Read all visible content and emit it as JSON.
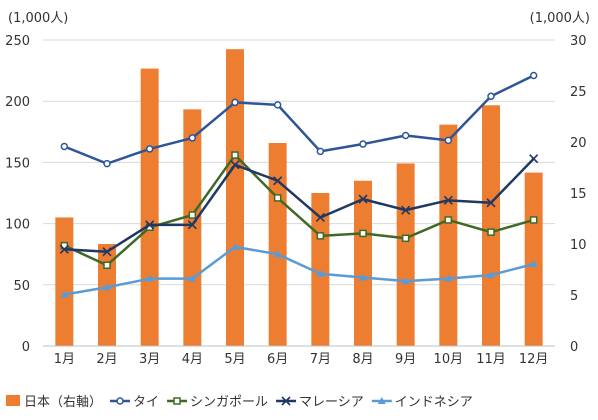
{
  "chart_data": {
    "type": "bar+line",
    "left_unit": "(1,000人)",
    "right_unit": "(1,000人)",
    "categories": [
      "1月",
      "2月",
      "3月",
      "4月",
      "5月",
      "6月",
      "7月",
      "8月",
      "9月",
      "10月",
      "11月",
      "12月"
    ],
    "left_axis": {
      "min": 0,
      "max": 250,
      "ticks": [
        0,
        50,
        100,
        150,
        200,
        250
      ]
    },
    "right_axis": {
      "min": 0,
      "max": 30,
      "ticks": [
        0,
        5,
        10,
        15,
        20,
        25,
        30
      ]
    },
    "bar_series": {
      "name": "日本（右軸）",
      "axis": "right",
      "color": "#ED7D31",
      "values": [
        12.6,
        10.0,
        27.2,
        23.2,
        29.1,
        19.9,
        15.0,
        16.2,
        17.9,
        21.7,
        23.6,
        17.0
      ]
    },
    "line_series": [
      {
        "name": "タイ",
        "axis": "left",
        "color": "#2E5597",
        "marker": "circle",
        "values": [
          163,
          149,
          161,
          170,
          199,
          197,
          159,
          165,
          172,
          168,
          204,
          221
        ]
      },
      {
        "name": "シンガポール",
        "axis": "left",
        "color": "#3F6A26",
        "marker": "square",
        "values": [
          82,
          66,
          97,
          107,
          156,
          121,
          90,
          92,
          88,
          103,
          93,
          103
        ]
      },
      {
        "name": "マレーシア",
        "axis": "left",
        "color": "#1F3864",
        "marker": "x",
        "values": [
          79,
          77,
          99,
          99,
          148,
          135,
          105,
          120,
          111,
          119,
          117,
          153
        ]
      },
      {
        "name": "インドネシア",
        "axis": "left",
        "color": "#5B9BD5",
        "marker": "triangle",
        "values": [
          42,
          48,
          55,
          55,
          81,
          75,
          59,
          56,
          53,
          55,
          58,
          67
        ]
      }
    ],
    "grid": true,
    "legend_position": "bottom"
  }
}
